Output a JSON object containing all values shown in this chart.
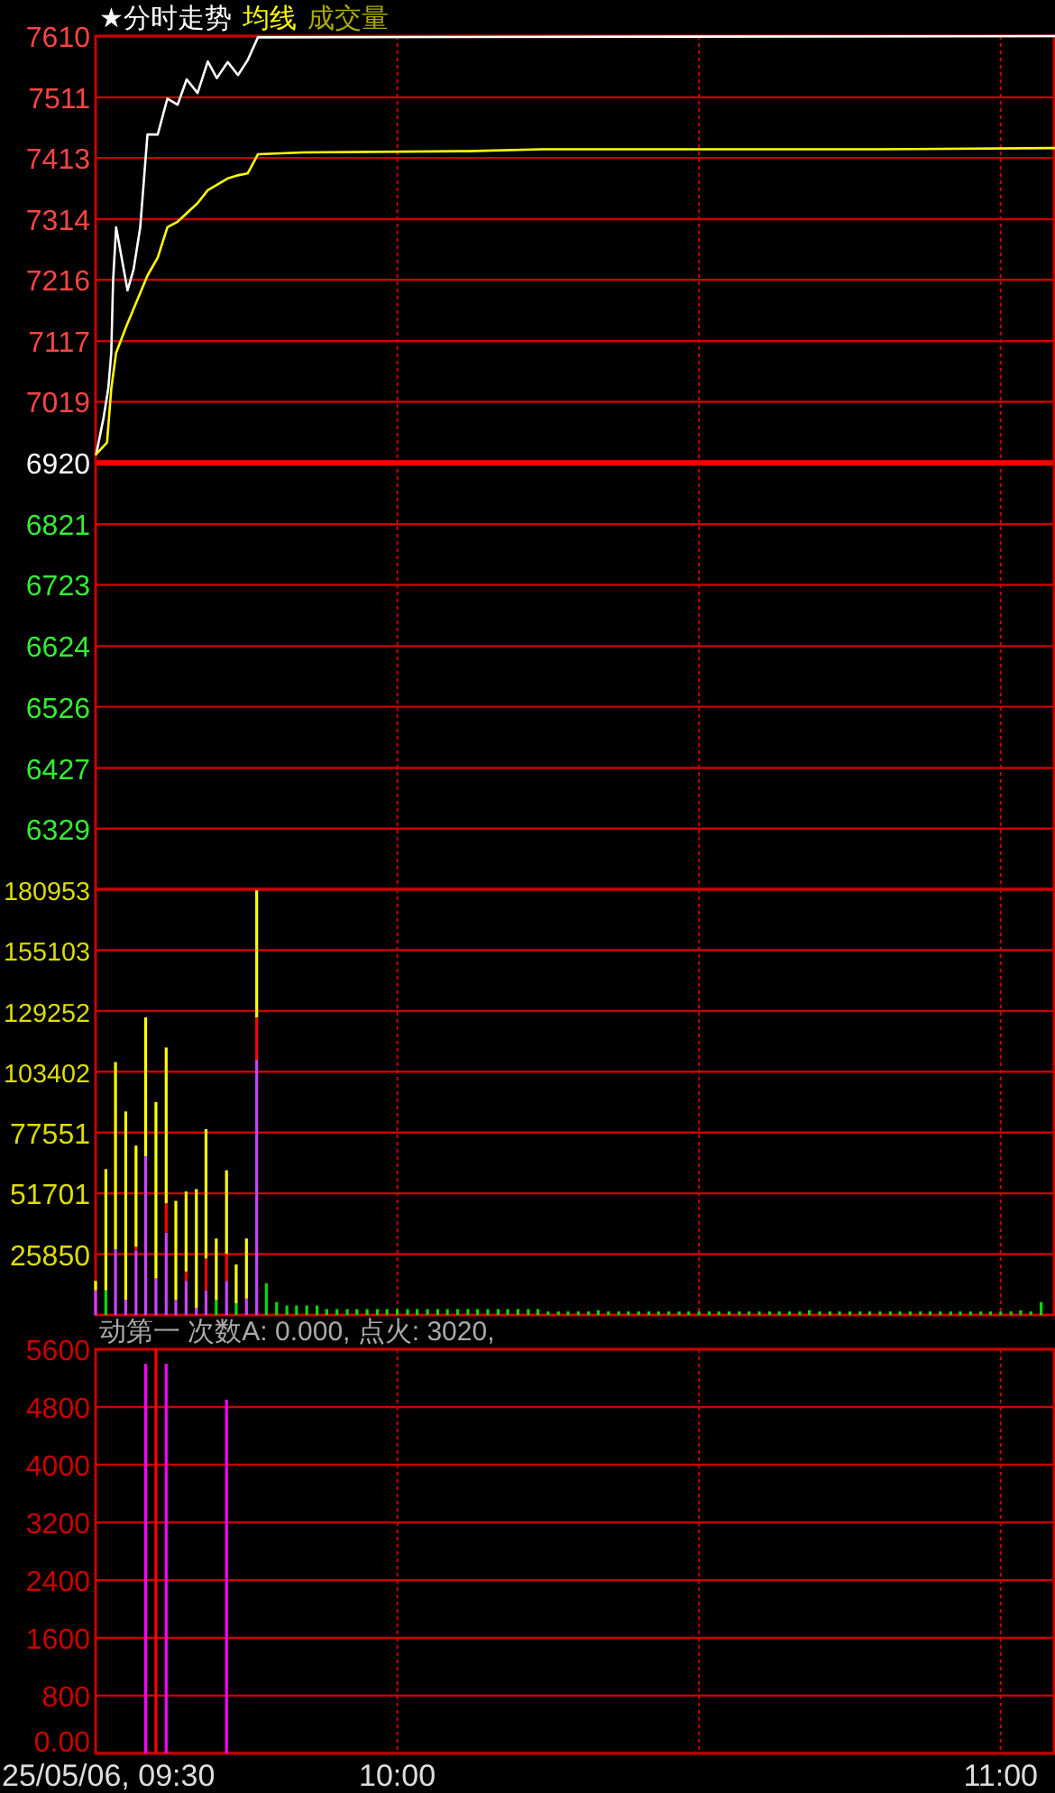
{
  "chart_data": [
    {
      "type": "line",
      "legend": "top left",
      "annotations": [
        "成交量"
      ],
      "grid": true,
      "tick_labels": "y",
      "xlim": [
        9.5,
        11.09
      ],
      "xticks": [
        {
          "value": 9.5,
          "label": null
        },
        {
          "value": 10,
          "label": null
        },
        {
          "value": 10.5,
          "label": null
        },
        {
          "value": 11,
          "label": null
        }
      ],
      "ylim": [
        6231,
        7610
      ],
      "yticks": [
        6329,
        6427,
        6526,
        6624,
        6723,
        6821,
        6920,
        7019,
        7117,
        7216,
        7314,
        7413,
        7511,
        7610
      ],
      "ref_lines": [
        {
          "axis": "y",
          "value": 6920,
          "color": "#ff0000"
        }
      ],
      "series": [
        {
          "name": "★分时走势",
          "color": "#ffffff",
          "x": [
            9.501,
            9.513,
            9.521,
            9.526,
            9.529,
            9.534,
            9.553,
            9.563,
            9.574,
            9.586,
            9.603,
            9.619,
            9.636,
            9.651,
            9.669,
            9.686,
            9.701,
            9.719,
            9.736,
            9.752,
            9.769,
            11.09
          ],
          "values": [
            6934,
            6992,
            7040,
            7098,
            7214,
            7301,
            7199,
            7233,
            7301,
            7451,
            7451,
            7509,
            7499,
            7540,
            7518,
            7569,
            7542,
            7568,
            7547,
            7571,
            7608,
            7610
          ]
        },
        {
          "name": "均线",
          "color": "#ffff00",
          "x": [
            9.501,
            9.519,
            9.526,
            9.534,
            9.551,
            9.586,
            9.603,
            9.619,
            9.636,
            9.669,
            9.686,
            9.719,
            9.736,
            9.752,
            9.769,
            9.845,
            10.115,
            10.24,
            10.793,
            11.09
          ],
          "values": [
            6934,
            6953,
            7040,
            7098,
            7141,
            7223,
            7252,
            7301,
            7310,
            7340,
            7361,
            7380,
            7385,
            7388,
            7419,
            7422,
            7424,
            7427,
            7427,
            7429
          ]
        }
      ]
    },
    {
      "type": "bar",
      "stacked": true,
      "grid": true,
      "tick_labels": "y",
      "xlim": [
        9.5,
        11.09
      ],
      "xticks": [
        {
          "value": 9.5,
          "label": null
        },
        {
          "value": 10,
          "label": null
        },
        {
          "value": 10.5,
          "label": null
        },
        {
          "value": 11,
          "label": null
        }
      ],
      "ylim": [
        0,
        180953
      ],
      "yticks": [
        25850,
        51701,
        77551,
        103402,
        129252,
        155103,
        180953
      ],
      "x": [
        9.5,
        9.517,
        9.533,
        9.55,
        9.567,
        9.583,
        9.6,
        9.617,
        9.633,
        9.65,
        9.667,
        9.683,
        9.7,
        9.717,
        9.733,
        9.75,
        9.767,
        9.783,
        9.8,
        9.817,
        9.833,
        9.85,
        9.867,
        9.883,
        9.9,
        9.917,
        9.933,
        9.95,
        9.967,
        9.983,
        10,
        10.017,
        10.033,
        10.05,
        10.067,
        10.083,
        10.1,
        10.117,
        10.133,
        10.15,
        10.167,
        10.183,
        10.2,
        10.217,
        10.233,
        10.25,
        10.267,
        10.283,
        10.3,
        10.317,
        10.333,
        10.35,
        10.367,
        10.383,
        10.4,
        10.417,
        10.433,
        10.45,
        10.467,
        10.483,
        10.5,
        10.517,
        10.533,
        10.55,
        10.567,
        10.583,
        10.6,
        10.617,
        10.633,
        10.65,
        10.667,
        10.683,
        10.7,
        10.717,
        10.733,
        10.75,
        10.767,
        10.783,
        10.8,
        10.817,
        10.833,
        10.85,
        10.867,
        10.883,
        10.9,
        10.917,
        10.933,
        10.95,
        10.967,
        10.983,
        11,
        11.017,
        11.033,
        11.05,
        11.067
      ],
      "series": [
        {
          "color": "#cc44ff",
          "values": [
            10500,
            null,
            28000,
            6500,
            27500,
            67500,
            15500,
            35000,
            6500,
            14500,
            3000,
            10500,
            null,
            14500,
            null,
            7000,
            108500,
            null,
            null,
            null,
            null,
            null,
            null,
            null,
            null,
            null,
            null,
            null,
            null,
            null,
            null,
            null,
            null,
            null,
            null,
            null,
            null,
            null,
            null,
            null,
            null,
            null,
            null,
            null,
            null,
            null,
            null,
            null,
            null,
            null,
            null,
            null,
            null,
            null,
            null,
            null,
            null,
            null,
            null,
            null,
            null,
            null,
            null,
            null,
            null,
            null,
            null,
            null,
            null,
            null,
            null,
            null,
            null,
            null,
            null,
            null,
            null,
            null,
            null,
            null,
            null,
            null,
            null,
            null,
            null,
            null,
            null,
            null,
            null,
            null,
            null,
            null,
            null,
            null,
            null
          ]
        },
        {
          "color": "#00dd00",
          "values": [
            null,
            10500,
            null,
            null,
            null,
            null,
            null,
            null,
            null,
            null,
            null,
            null,
            6500,
            null,
            5000,
            null,
            null,
            13500,
            5500,
            4000,
            4000,
            4000,
            4000,
            2500,
            2500,
            2500,
            2500,
            2500,
            2500,
            2500,
            2500,
            2500,
            2500,
            2500,
            2500,
            2500,
            2500,
            2500,
            2500,
            2500,
            2500,
            2500,
            2500,
            2500,
            2500,
            1500,
            1500,
            1500,
            1500,
            1500,
            2000,
            1500,
            1500,
            1500,
            1500,
            1500,
            1500,
            1500,
            1500,
            1500,
            1500,
            1500,
            1500,
            1500,
            1500,
            1500,
            1500,
            1500,
            1500,
            1500,
            1500,
            2000,
            1500,
            1500,
            1500,
            1500,
            1500,
            1500,
            1500,
            1500,
            1500,
            1500,
            1500,
            1500,
            1500,
            1500,
            1500,
            1500,
            1500,
            1500,
            1500,
            1500,
            2000,
            1500,
            5500
          ]
        },
        {
          "color": "#ff0000",
          "values": [
            null,
            null,
            null,
            null,
            1500,
            null,
            null,
            12500,
            null,
            4000,
            null,
            13500,
            null,
            11500,
            null,
            null,
            18000,
            null,
            null,
            null,
            null,
            null,
            null,
            null,
            null,
            null,
            null,
            null,
            null,
            null,
            null,
            null,
            null,
            null,
            null,
            null,
            null,
            null,
            null,
            null,
            null,
            null,
            null,
            null,
            null,
            null,
            null,
            null,
            null,
            null,
            null,
            null,
            null,
            null,
            null,
            null,
            null,
            null,
            null,
            null,
            null,
            null,
            null,
            null,
            null,
            null,
            null,
            null,
            null,
            null,
            null,
            null,
            null,
            null,
            null,
            null,
            null,
            null,
            null,
            null,
            null,
            null,
            null,
            null,
            null,
            null,
            null,
            null,
            null,
            null,
            null,
            null,
            null,
            null,
            null
          ]
        },
        {
          "color": "#ffff00",
          "values": [
            4000,
            51500,
            79500,
            80000,
            43000,
            59000,
            75000,
            66200,
            42000,
            34000,
            50500,
            55000,
            26000,
            35500,
            16500,
            25500,
            54000,
            null,
            null,
            null,
            null,
            null,
            null,
            null,
            null,
            null,
            null,
            null,
            null,
            null,
            null,
            null,
            null,
            null,
            null,
            null,
            null,
            null,
            null,
            null,
            null,
            null,
            null,
            null,
            null,
            null,
            null,
            null,
            null,
            null,
            null,
            null,
            null,
            null,
            null,
            null,
            null,
            null,
            null,
            null,
            null,
            null,
            null,
            null,
            null,
            null,
            null,
            null,
            null,
            null,
            null,
            null,
            null,
            null,
            null,
            null,
            null,
            null,
            null,
            null,
            null,
            null,
            null,
            null,
            null,
            null,
            null,
            null,
            null,
            null,
            null,
            null,
            null,
            null,
            null
          ]
        }
      ]
    },
    {
      "type": "bar",
      "title": "动第一 次数A: 0.000, 点火: 3020,",
      "grid": true,
      "xlim": [
        9.5,
        11.09
      ],
      "xticks": [
        {
          "value": 9.5,
          "label": "25/05/06, 09:30"
        },
        {
          "value": 10,
          "label": "10:00"
        },
        {
          "value": 10.5,
          "label": null
        },
        {
          "value": 11,
          "label": "11:00"
        }
      ],
      "ylim": [
        0,
        5600
      ],
      "yticks": [
        {
          "value": 0,
          "label": "0.00"
        },
        800,
        1600,
        2400,
        3200,
        4000,
        4800,
        5600
      ],
      "series": [
        {
          "color": "#ff00ff",
          "x": [
            9.583,
            9.617,
            9.717
          ],
          "values": [
            5400,
            5400,
            4900
          ]
        },
        {
          "color": "#ff0000",
          "x": [
            9.6
          ],
          "values": [
            5600
          ]
        }
      ]
    }
  ]
}
